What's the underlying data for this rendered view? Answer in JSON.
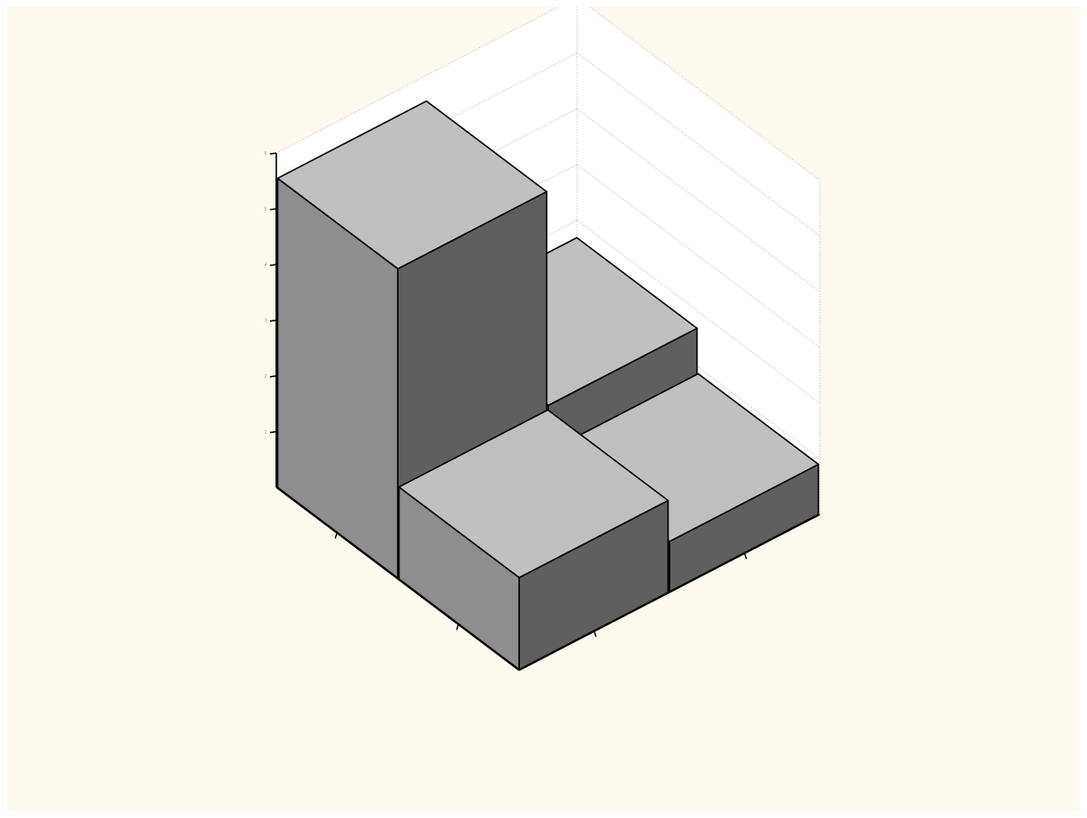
{
  "chart_data": {
    "type": "bar",
    "dimension": "3d",
    "title": "",
    "x_categories": [
      "",
      ""
    ],
    "y_categories": [
      "",
      ""
    ],
    "zlabel": "",
    "zlim": [
      0,
      6
    ],
    "z_ticks": [
      1,
      2,
      3,
      4,
      5,
      6
    ],
    "bars": [
      {
        "x": 0,
        "y": 0,
        "value": 1.65
      },
      {
        "x": 1,
        "y": 0,
        "value": 0.9
      },
      {
        "x": 0,
        "y": 1,
        "value": 5.55
      },
      {
        "x": 1,
        "y": 1,
        "value": 1.7
      }
    ],
    "grid": true,
    "colors": {
      "top": "#c0c0c0",
      "left": "#8e8e8e",
      "right": "#5f5f5f",
      "background": "#fefaf0"
    }
  }
}
